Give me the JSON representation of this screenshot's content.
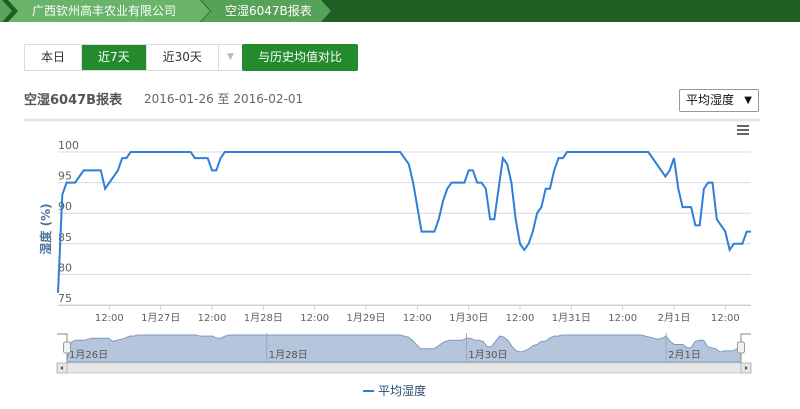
{
  "breadcrumb": [
    "广西钦州高丰农业有限公司",
    "空湿6047B报表"
  ],
  "range_buttons": [
    "本日",
    "近7天",
    "近30天"
  ],
  "active_range": "近7天",
  "compare_button": "与历史均值对比",
  "report_title": "空湿6047B报表",
  "date_range": "2016-01-26 至 2016-02-01",
  "metric_select": {
    "value": "平均湿度",
    "arrow": "▼"
  },
  "colors": {
    "brand_green": "#238a2d",
    "series": "#2f7ed8",
    "navigator_fill": "#b5c6dc"
  },
  "chart_data": {
    "type": "line",
    "ylabel": "湿度 (%)",
    "ylim": [
      75,
      100
    ],
    "yticks": [
      "75",
      "80",
      "85",
      "90",
      "95",
      "100"
    ],
    "xlim": [
      "2016-01-26 00:00",
      "2016-02-01 18:00"
    ],
    "xticks": [
      [
        "2016-01-26 12:00",
        "12:00"
      ],
      [
        "2016-01-27 00:00",
        "1月27日"
      ],
      [
        "2016-01-27 12:00",
        "12:00"
      ],
      [
        "2016-01-28 00:00",
        "1月28日"
      ],
      [
        "2016-01-28 12:00",
        "12:00"
      ],
      [
        "2016-01-29 00:00",
        "1月29日"
      ],
      [
        "2016-01-29 12:00",
        "12:00"
      ],
      [
        "2016-01-30 00:00",
        "1月30日"
      ],
      [
        "2016-01-30 12:00",
        "12:00"
      ],
      [
        "2016-01-31 00:00",
        "1月31日"
      ],
      [
        "2016-01-31 12:00",
        "12:00"
      ],
      [
        "2016-02-01 00:00",
        "2月1日"
      ],
      [
        "2016-02-01 12:00",
        "12:00"
      ]
    ],
    "navigator_ticks": [
      [
        "2016-01-26 00:00",
        "1月26日"
      ],
      [
        "2016-01-28 00:00",
        "1月28日"
      ],
      [
        "2016-01-30 00:00",
        "1月30日"
      ],
      [
        "2016-02-01 00:00",
        "2月1日"
      ]
    ],
    "grid": true,
    "legend": "bottom",
    "series": [
      {
        "name": "平均湿度",
        "points": [
          [
            "2016-01-26 00:00",
            77
          ],
          [
            "2016-01-26 01:00",
            93
          ],
          [
            "2016-01-26 02:00",
            95
          ],
          [
            "2016-01-26 04:00",
            95
          ],
          [
            "2016-01-26 06:00",
            97
          ],
          [
            "2016-01-26 10:00",
            97
          ],
          [
            "2016-01-26 11:00",
            94
          ],
          [
            "2016-01-26 14:00",
            97
          ],
          [
            "2016-01-26 15:00",
            99
          ],
          [
            "2016-01-26 16:00",
            99
          ],
          [
            "2016-01-26 17:00",
            100
          ],
          [
            "2016-01-27 07:00",
            100
          ],
          [
            "2016-01-27 08:00",
            99
          ],
          [
            "2016-01-27 11:00",
            99
          ],
          [
            "2016-01-27 12:00",
            97
          ],
          [
            "2016-01-27 13:00",
            97
          ],
          [
            "2016-01-27 14:00",
            99
          ],
          [
            "2016-01-27 15:00",
            100
          ],
          [
            "2016-01-29 08:00",
            100
          ],
          [
            "2016-01-29 10:00",
            98
          ],
          [
            "2016-01-29 11:00",
            95
          ],
          [
            "2016-01-29 13:00",
            87
          ],
          [
            "2016-01-29 16:00",
            87
          ],
          [
            "2016-01-29 17:00",
            89
          ],
          [
            "2016-01-29 18:00",
            92
          ],
          [
            "2016-01-29 19:00",
            94
          ],
          [
            "2016-01-29 20:00",
            95
          ],
          [
            "2016-01-29 23:00",
            95
          ],
          [
            "2016-01-30 00:00",
            97
          ],
          [
            "2016-01-30 01:00",
            97
          ],
          [
            "2016-01-30 02:00",
            95
          ],
          [
            "2016-01-30 03:00",
            95
          ],
          [
            "2016-01-30 04:00",
            94
          ],
          [
            "2016-01-30 05:00",
            89
          ],
          [
            "2016-01-30 06:00",
            89
          ],
          [
            "2016-01-30 08:00",
            99
          ],
          [
            "2016-01-30 09:00",
            98
          ],
          [
            "2016-01-30 10:00",
            95
          ],
          [
            "2016-01-30 11:00",
            89
          ],
          [
            "2016-01-30 12:00",
            85
          ],
          [
            "2016-01-30 13:00",
            84
          ],
          [
            "2016-01-30 14:00",
            85
          ],
          [
            "2016-01-30 15:00",
            87
          ],
          [
            "2016-01-30 16:00",
            90
          ],
          [
            "2016-01-30 17:00",
            91
          ],
          [
            "2016-01-30 18:00",
            94
          ],
          [
            "2016-01-30 19:00",
            94
          ],
          [
            "2016-01-30 20:00",
            97
          ],
          [
            "2016-01-30 21:00",
            99
          ],
          [
            "2016-01-30 22:00",
            99
          ],
          [
            "2016-01-30 23:00",
            100
          ],
          [
            "2016-01-31 18:00",
            100
          ],
          [
            "2016-01-31 22:00",
            96
          ],
          [
            "2016-01-31 23:00",
            97
          ],
          [
            "2016-02-01 00:00",
            99
          ],
          [
            "2016-02-01 01:00",
            94
          ],
          [
            "2016-02-01 02:00",
            91
          ],
          [
            "2016-02-01 04:00",
            91
          ],
          [
            "2016-02-01 05:00",
            88
          ],
          [
            "2016-02-01 06:00",
            88
          ],
          [
            "2016-02-01 07:00",
            94
          ],
          [
            "2016-02-01 08:00",
            95
          ],
          [
            "2016-02-01 09:00",
            95
          ],
          [
            "2016-02-01 10:00",
            89
          ],
          [
            "2016-02-01 12:00",
            87
          ],
          [
            "2016-02-01 13:00",
            84
          ],
          [
            "2016-02-01 14:00",
            85
          ],
          [
            "2016-02-01 16:00",
            85
          ],
          [
            "2016-02-01 17:00",
            87
          ],
          [
            "2016-02-01 18:00",
            87
          ]
        ]
      }
    ]
  }
}
